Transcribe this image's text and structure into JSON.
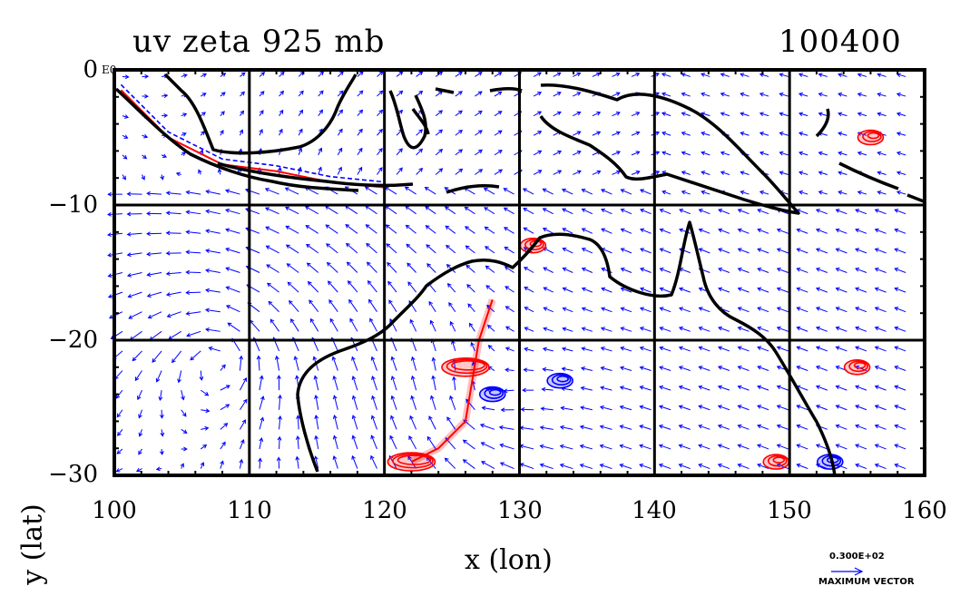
{
  "title_left": "uv zeta 925 mb",
  "title_right": "100400",
  "x_axis_label": "x (lon)",
  "y_axis_label": "y (lat)",
  "y_top_exponent": "E0",
  "reference_vector": {
    "value": "0.300E+02",
    "label": "MAXIMUM VECTOR"
  },
  "x_ticks": [
    "100",
    "110",
    "120",
    "130",
    "140",
    "150",
    "160"
  ],
  "y_ticks": [
    "0",
    "−10",
    "−20",
    "−30"
  ],
  "colors": {
    "vectors": "#0000ff",
    "positive_vorticity": "#ff0000",
    "negative_vorticity": "#0000ff",
    "coastline": "#000000",
    "positive_fill": "#ffc8c8",
    "negative_fill": "#c8c8ff"
  },
  "chart_data": {
    "type": "vector_field_map",
    "title": "uv zeta 925 mb",
    "xlabel": "x (lon)",
    "ylabel": "y (lat)",
    "xlim": [
      100,
      160
    ],
    "ylim": [
      -30,
      0
    ],
    "grid": true,
    "xticks": [
      100,
      110,
      120,
      130,
      140,
      150,
      160
    ],
    "yticks": [
      0,
      -10,
      -20,
      -30
    ],
    "circulation_centers": [
      {
        "type": "anticyclone",
        "lon": 108,
        "lat": -21
      },
      {
        "type": "cyclonic_low",
        "lon": 127,
        "lat": -25
      },
      {
        "type": "trough",
        "lon": 133,
        "lat": -21
      }
    ],
    "positive_vorticity_regions": [
      {
        "lon": 126,
        "lat": -22
      },
      {
        "lon": 122,
        "lat": -29
      },
      {
        "lon": 131,
        "lat": -13
      },
      {
        "lon": 155,
        "lat": -22
      },
      {
        "lon": 149,
        "lat": -29
      },
      {
        "lon": 156,
        "lat": -5
      }
    ],
    "negative_vorticity_regions": [
      {
        "lon": 128,
        "lat": -24
      },
      {
        "lon": 153,
        "lat": -29
      },
      {
        "lon": 133,
        "lat": -23
      }
    ]
  }
}
